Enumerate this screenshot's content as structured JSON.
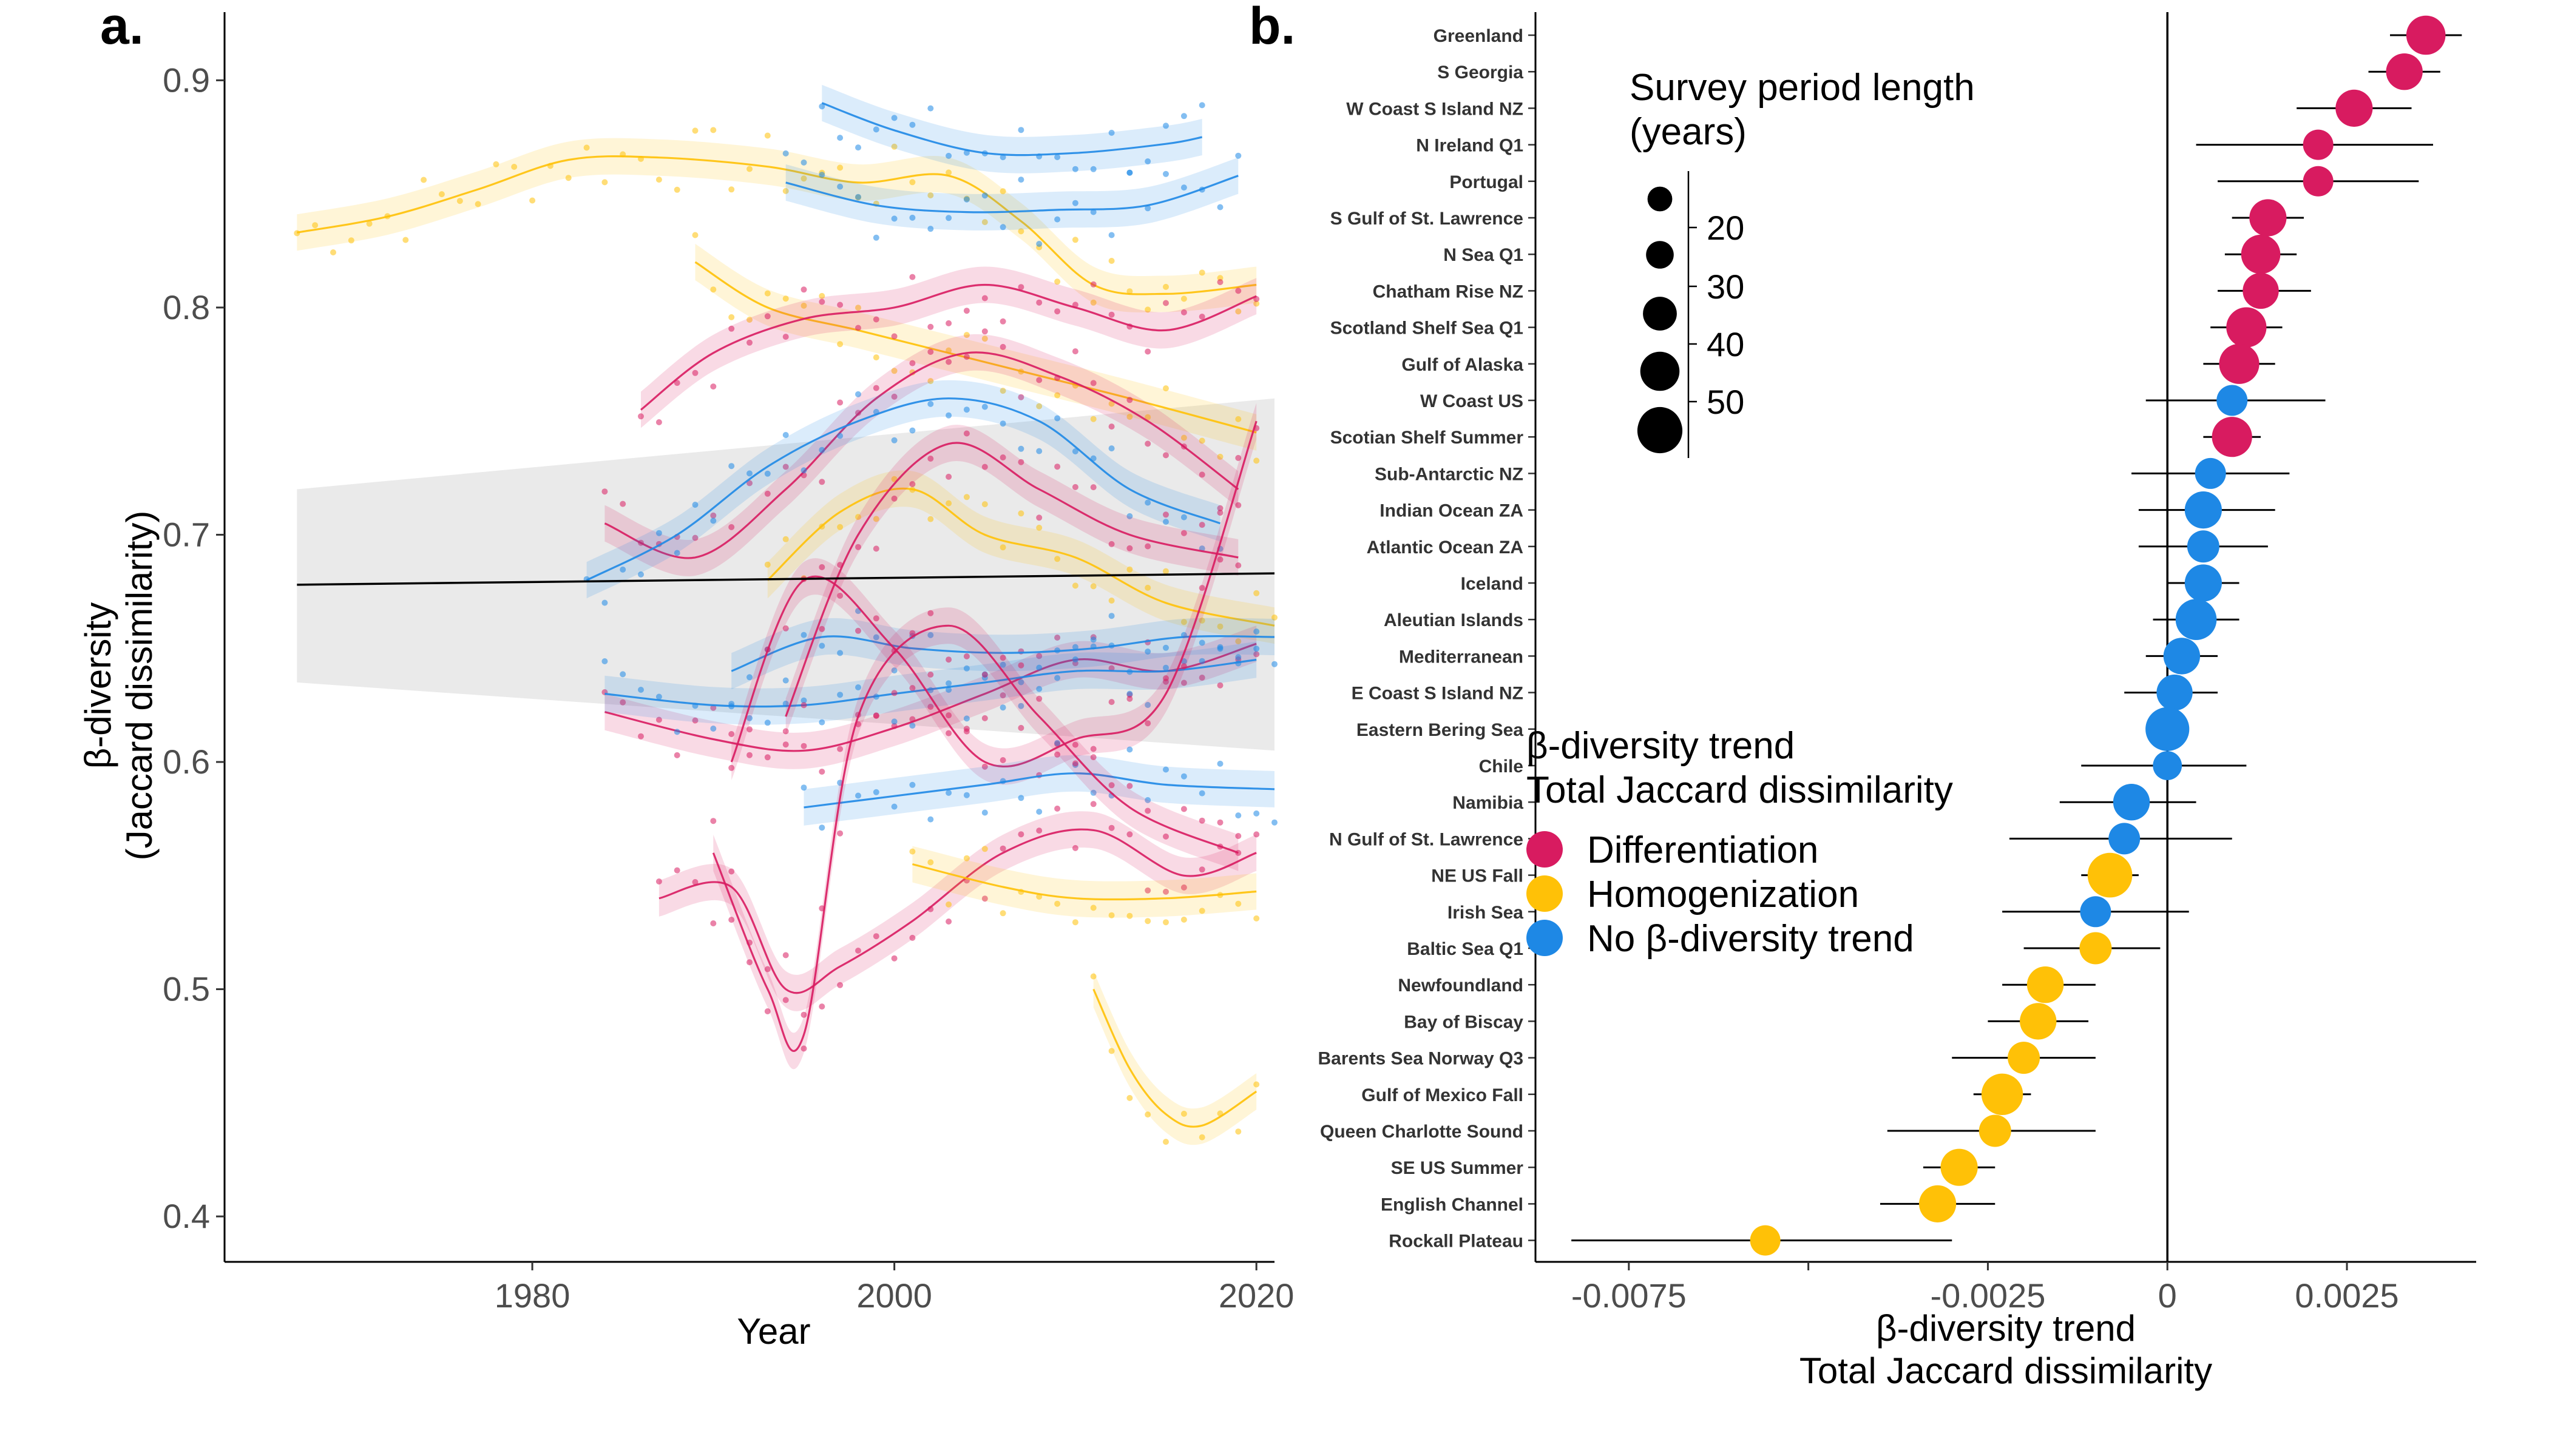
{
  "panel_a": {
    "letter": "a.",
    "xlabel": "Year",
    "ylabel_line1": "β-diversity",
    "ylabel_line2": "(Jaccard dissimilarity)"
  },
  "panel_b": {
    "letter": "b.",
    "xlabel_line1": "β-diversity trend",
    "xlabel_line2": "Total Jaccard dissimilarity"
  },
  "legend": {
    "size_title_line1": "Survey period length",
    "size_title_line2": "(years)",
    "size_labels": [
      "20",
      "30",
      "40",
      "50"
    ],
    "trend_title_line1": "β-diversity trend",
    "trend_title_line2": "Total Jaccard dissimilarity",
    "trend_items": [
      {
        "label": "Differentiation",
        "color": "#d81b60"
      },
      {
        "label": "Homogenization",
        "color": "#ffc107"
      },
      {
        "label": "No β-diversity trend",
        "color": "#1e88e5"
      }
    ]
  },
  "chart_data": [
    {
      "type": "line",
      "panel": "a",
      "xlabel": "Year",
      "ylabel": "β-diversity (Jaccard dissimilarity)",
      "xlim": [
        1963,
        2021
      ],
      "ylim": [
        0.38,
        0.93
      ],
      "xticks": [
        1980,
        2000,
        2020
      ],
      "yticks": [
        0.4,
        0.5,
        0.6,
        0.7,
        0.8,
        0.9
      ],
      "overall_trend": {
        "x": [
          1967,
          2021
        ],
        "y": [
          0.678,
          0.683
        ],
        "ci_lower": [
          0.635,
          0.605
        ],
        "ci_upper": [
          0.72,
          0.76
        ]
      },
      "series": [
        {
          "color": "#ffc107",
          "x": [
            1967,
            1972,
            1977,
            1982,
            1987,
            1993,
            1998,
            2003,
            2007,
            2011,
            2015,
            2020
          ],
          "y": [
            0.833,
            0.84,
            0.852,
            0.865,
            0.866,
            0.862,
            0.855,
            0.858,
            0.838,
            0.81,
            0.806,
            0.81
          ]
        },
        {
          "color": "#1e88e5",
          "x": [
            1996,
            2000,
            2005,
            2010,
            2015,
            2017
          ],
          "y": [
            0.89,
            0.878,
            0.868,
            0.868,
            0.872,
            0.875
          ]
        },
        {
          "color": "#1e88e5",
          "x": [
            1994,
            1999,
            2004,
            2009,
            2014,
            2019
          ],
          "y": [
            0.855,
            0.845,
            0.842,
            0.843,
            0.845,
            0.858
          ]
        },
        {
          "color": "#ffc107",
          "x": [
            1989,
            1993,
            1998,
            2003,
            2008,
            2013,
            2020
          ],
          "y": [
            0.82,
            0.8,
            0.79,
            0.78,
            0.77,
            0.76,
            0.745
          ]
        },
        {
          "color": "#d81b60",
          "x": [
            1986,
            1990,
            1995,
            2000,
            2005,
            2010,
            2015,
            2020
          ],
          "y": [
            0.755,
            0.78,
            0.795,
            0.8,
            0.81,
            0.8,
            0.79,
            0.805
          ]
        },
        {
          "color": "#d81b60",
          "x": [
            1984,
            1989,
            1994,
            1999,
            2004,
            2009,
            2014,
            2019
          ],
          "y": [
            0.705,
            0.69,
            0.72,
            0.76,
            0.78,
            0.77,
            0.75,
            0.72
          ]
        },
        {
          "color": "#1e88e5",
          "x": [
            1983,
            1988,
            1993,
            1998,
            2003,
            2008,
            2013,
            2018
          ],
          "y": [
            0.68,
            0.7,
            0.73,
            0.75,
            0.76,
            0.75,
            0.72,
            0.705
          ]
        },
        {
          "color": "#ffc107",
          "x": [
            1993,
            1997,
            2001,
            2005,
            2010,
            2015,
            2021
          ],
          "y": [
            0.68,
            0.71,
            0.72,
            0.7,
            0.69,
            0.67,
            0.66
          ]
        },
        {
          "color": "#d81b60",
          "x": [
            1984,
            1990,
            1995,
            2000,
            2005,
            2010,
            2015,
            2020
          ],
          "y": [
            0.622,
            0.61,
            0.605,
            0.615,
            0.63,
            0.645,
            0.64,
            0.652
          ]
        },
        {
          "color": "#1e88e5",
          "x": [
            1984,
            1990,
            1995,
            2000,
            2005,
            2010,
            2015,
            2020
          ],
          "y": [
            0.63,
            0.625,
            0.625,
            0.63,
            0.635,
            0.64,
            0.64,
            0.645
          ]
        },
        {
          "color": "#1e88e5",
          "x": [
            1991,
            1996,
            2001,
            2006,
            2011,
            2016,
            2021
          ],
          "y": [
            0.64,
            0.655,
            0.65,
            0.648,
            0.65,
            0.655,
            0.655
          ]
        },
        {
          "color": "#d81b60",
          "x": [
            1991,
            1995,
            2000,
            2005,
            2010,
            2015,
            2020
          ],
          "y": [
            0.6,
            0.68,
            0.65,
            0.6,
            0.61,
            0.63,
            0.75
          ]
        },
        {
          "color": "#d81b60",
          "x": [
            1994,
            1998,
            2003,
            2008,
            2013,
            2019
          ],
          "y": [
            0.62,
            0.7,
            0.74,
            0.72,
            0.7,
            0.69
          ]
        },
        {
          "color": "#1e88e5",
          "x": [
            1995,
            2000,
            2005,
            2010,
            2015,
            2021
          ],
          "y": [
            0.58,
            0.585,
            0.59,
            0.595,
            0.59,
            0.588
          ]
        },
        {
          "color": "#d81b60",
          "x": [
            1987,
            1991,
            1994,
            1997,
            2001,
            2006,
            2011,
            2016,
            2020
          ],
          "y": [
            0.54,
            0.545,
            0.5,
            0.51,
            0.53,
            0.56,
            0.57,
            0.55,
            0.56
          ]
        },
        {
          "color": "#d81b60",
          "x": [
            1990,
            1993,
            1995,
            1998,
            2003,
            2008,
            2013,
            2019
          ],
          "y": [
            0.56,
            0.5,
            0.48,
            0.62,
            0.66,
            0.62,
            0.58,
            0.56
          ]
        },
        {
          "color": "#ffc107",
          "x": [
            2001,
            2006,
            2010,
            2015,
            2020
          ],
          "y": [
            0.555,
            0.545,
            0.54,
            0.54,
            0.543
          ]
        },
        {
          "color": "#ffc107",
          "x": [
            2011,
            2013,
            2015,
            2017,
            2020
          ],
          "y": [
            0.5,
            0.465,
            0.445,
            0.44,
            0.455
          ]
        }
      ]
    },
    {
      "type": "scatter",
      "panel": "b",
      "xlabel": "β-diversity trend Total Jaccard dissimilarity",
      "xlim": [
        -0.0088,
        0.0043
      ],
      "xticks": [
        -0.0075,
        -0.0025,
        0,
        0.0025
      ],
      "xtick_labels": [
        "-0.0075",
        "-0.0025",
        "0",
        "0.0025"
      ],
      "points": [
        {
          "label": "Greenland",
          "trend": 0.0036,
          "lo": 0.0031,
          "hi": 0.0041,
          "years": 40,
          "group": "Differentiation"
        },
        {
          "label": "S Georgia",
          "trend": 0.0033,
          "lo": 0.0028,
          "hi": 0.0038,
          "years": 35,
          "group": "Differentiation"
        },
        {
          "label": "W Coast S Island NZ",
          "trend": 0.0026,
          "lo": 0.0018,
          "hi": 0.0034,
          "years": 36,
          "group": "Differentiation"
        },
        {
          "label": "N Ireland Q1",
          "trend": 0.0021,
          "lo": 0.0004,
          "hi": 0.0037,
          "years": 24,
          "group": "Differentiation"
        },
        {
          "label": "Portugal",
          "trend": 0.0021,
          "lo": 0.0007,
          "hi": 0.0035,
          "years": 24,
          "group": "Differentiation"
        },
        {
          "label": "S Gulf of St. Lawrence",
          "trend": 0.0014,
          "lo": 0.0009,
          "hi": 0.0019,
          "years": 36,
          "group": "Differentiation"
        },
        {
          "label": "N Sea Q1",
          "trend": 0.0013,
          "lo": 0.0008,
          "hi": 0.0018,
          "years": 40,
          "group": "Differentiation"
        },
        {
          "label": "Chatham Rise NZ",
          "trend": 0.0013,
          "lo": 0.0007,
          "hi": 0.002,
          "years": 34,
          "group": "Differentiation"
        },
        {
          "label": "Scotland Shelf Sea Q1",
          "trend": 0.0011,
          "lo": 0.0006,
          "hi": 0.0016,
          "years": 42,
          "group": "Differentiation"
        },
        {
          "label": "Gulf of Alaska",
          "trend": 0.001,
          "lo": 0.0005,
          "hi": 0.0015,
          "years": 42,
          "group": "Differentiation"
        },
        {
          "label": "W Coast US",
          "trend": 0.0009,
          "lo": -0.0003,
          "hi": 0.0022,
          "years": 25,
          "group": "No β-diversity trend"
        },
        {
          "label": "Scotian Shelf Summer",
          "trend": 0.0009,
          "lo": 0.0005,
          "hi": 0.0013,
          "years": 42,
          "group": "Differentiation"
        },
        {
          "label": "Sub-Antarctic NZ",
          "trend": 0.0006,
          "lo": -0.0005,
          "hi": 0.0017,
          "years": 25,
          "group": "No β-diversity trend"
        },
        {
          "label": "Indian Ocean ZA",
          "trend": 0.0005,
          "lo": -0.0004,
          "hi": 0.0015,
          "years": 36,
          "group": "No β-diversity trend"
        },
        {
          "label": "Atlantic Ocean ZA",
          "trend": 0.0005,
          "lo": -0.0004,
          "hi": 0.0014,
          "years": 27,
          "group": "No β-diversity trend"
        },
        {
          "label": "Iceland",
          "trend": 0.0005,
          "lo": 0,
          "hi": 0.001,
          "years": 36,
          "group": "No β-diversity trend"
        },
        {
          "label": "Aleutian Islands",
          "trend": 0.0004,
          "lo": -0.0002,
          "hi": 0.001,
          "years": 44,
          "group": "No β-diversity trend"
        },
        {
          "label": "Mediterranean",
          "trend": 0.0002,
          "lo": -0.0003,
          "hi": 0.0007,
          "years": 35,
          "group": "No β-diversity trend"
        },
        {
          "label": "E Coast S Island NZ",
          "trend": 0.0001,
          "lo": -0.0006,
          "hi": 0.0007,
          "years": 34,
          "group": "No β-diversity trend"
        },
        {
          "label": "Eastern Bering Sea",
          "trend": 0,
          "lo": -0.0003,
          "hi": 0.0003,
          "years": 50,
          "group": "No β-diversity trend"
        },
        {
          "label": "Chile",
          "trend": 0,
          "lo": -0.0012,
          "hi": 0.0011,
          "years": 22,
          "group": "No β-diversity trend"
        },
        {
          "label": "Namibia",
          "trend": -0.0005,
          "lo": -0.0015,
          "hi": 0.0004,
          "years": 35,
          "group": "No β-diversity trend"
        },
        {
          "label": "N Gulf of St. Lawrence",
          "trend": -0.0006,
          "lo": -0.0022,
          "hi": 0.0009,
          "years": 26,
          "group": "No β-diversity trend"
        },
        {
          "label": "NE US Fall",
          "trend": -0.0008,
          "lo": -0.0012,
          "hi": -0.0004,
          "years": 52,
          "group": "Homogenization"
        },
        {
          "label": "Irish Sea",
          "trend": -0.001,
          "lo": -0.0023,
          "hi": 0.0003,
          "years": 25,
          "group": "No β-diversity trend"
        },
        {
          "label": "Baltic Sea Q1",
          "trend": -0.001,
          "lo": -0.002,
          "hi": -0.0001,
          "years": 27,
          "group": "Homogenization"
        },
        {
          "label": "Newfoundland",
          "trend": -0.0017,
          "lo": -0.0023,
          "hi": -0.001,
          "years": 35,
          "group": "Homogenization"
        },
        {
          "label": "Bay of Biscay",
          "trend": -0.0018,
          "lo": -0.0025,
          "hi": -0.0011,
          "years": 35,
          "group": "Homogenization"
        },
        {
          "label": "Barents Sea Norway Q3",
          "trend": -0.002,
          "lo": -0.003,
          "hi": -0.001,
          "years": 27,
          "group": "Homogenization"
        },
        {
          "label": "Gulf of Mexico Fall",
          "trend": -0.0023,
          "lo": -0.0027,
          "hi": -0.0019,
          "years": 45,
          "group": "Homogenization"
        },
        {
          "label": "Queen Charlotte Sound",
          "trend": -0.0024,
          "lo": -0.0039,
          "hi": -0.001,
          "years": 27,
          "group": "Homogenization"
        },
        {
          "label": "SE US Summer",
          "trend": -0.0029,
          "lo": -0.0034,
          "hi": -0.0024,
          "years": 36,
          "group": "Homogenization"
        },
        {
          "label": "English Channel",
          "trend": -0.0032,
          "lo": -0.004,
          "hi": -0.0024,
          "years": 36,
          "group": "Homogenization"
        },
        {
          "label": "Rockall Plateau",
          "trend": -0.0056,
          "lo": -0.0083,
          "hi": -0.003,
          "years": 24,
          "group": "Homogenization"
        }
      ]
    }
  ]
}
